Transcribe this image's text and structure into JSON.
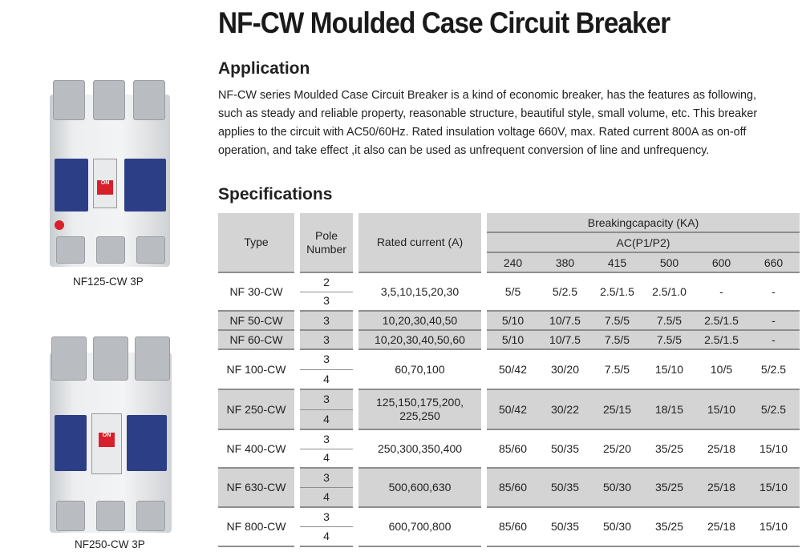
{
  "title": "NF-CW Moulded Case Circuit Breaker",
  "application": {
    "heading": "Application",
    "lines": [
      "NF-CW series Moulded Case Circuit Breaker is a kind of economic breaker, has the features as following,",
      "such as steady and reliable property, reasonable structure, beautiful style, small volume, etc. This breaker",
      "applies to the circuit with AC50/60Hz.  Rated insulation voltage 660V, max. Rated current 800A as on-off",
      "operation, and take effect ,it also can be used as unfrequent conversion of line and unfrequency."
    ]
  },
  "products": [
    {
      "caption": "NF125-CW 3P",
      "rating": "100",
      "on": "ON"
    },
    {
      "caption": "NF250-CW 3P",
      "rating": "250",
      "on": "ON"
    }
  ],
  "specifications": {
    "heading": "Specifications",
    "headers": {
      "type": "Type",
      "pole": "Pole Number",
      "rated": "Rated current (A)",
      "breaking": "Breakingcapacity (KA)",
      "ac": "AC(P1/P2)",
      "voltages": [
        "240",
        "380",
        "415",
        "500",
        "600",
        "660"
      ]
    },
    "rows": [
      {
        "type": "NF 30-CW",
        "poles": [
          "2",
          "3"
        ],
        "rated": "3,5,10,15,20,30",
        "values": [
          "5/5",
          "5/2.5",
          "2.5/1.5",
          "2.5/1.0",
          "-",
          "-"
        ],
        "shaded": false
      },
      {
        "type": "NF 50-CW",
        "poles": [
          "3"
        ],
        "rated": "10,20,30,40,50",
        "values": [
          "5/10",
          "10/7.5",
          "7.5/5",
          "7.5/5",
          "2.5/1.5",
          "-"
        ],
        "shaded": true
      },
      {
        "type": "NF 60-CW",
        "poles": [
          "3"
        ],
        "rated": "10,20,30,40,50,60",
        "values": [
          "5/10",
          "10/7.5",
          "7.5/5",
          "7.5/5",
          "2.5/1.5",
          "-"
        ],
        "shaded": true
      },
      {
        "type": "NF 100-CW",
        "poles": [
          "3",
          "4"
        ],
        "rated": "60,70,100",
        "values": [
          "50/42",
          "30/20",
          "7.5/5",
          "15/10",
          "10/5",
          "5/2.5"
        ],
        "shaded": false
      },
      {
        "type": "NF 250-CW",
        "poles": [
          "3",
          "4"
        ],
        "rated": "125,150,175,200, 225,250",
        "values": [
          "50/42",
          "30/22",
          "25/15",
          "18/15",
          "15/10",
          "5/2.5"
        ],
        "shaded": true
      },
      {
        "type": "NF 400-CW",
        "poles": [
          "3",
          "4"
        ],
        "rated": "250,300,350,400",
        "values": [
          "85/60",
          "50/35",
          "25/20",
          "35/25",
          "25/18",
          "15/10"
        ],
        "shaded": false
      },
      {
        "type": "NF 630-CW",
        "poles": [
          "3",
          "4"
        ],
        "rated": "500,600,630",
        "values": [
          "85/60",
          "50/35",
          "50/30",
          "35/25",
          "25/18",
          "15/10"
        ],
        "shaded": true
      },
      {
        "type": "NF 800-CW",
        "poles": [
          "3",
          "4"
        ],
        "rated": "600,700,800",
        "values": [
          "85/60",
          "50/35",
          "50/30",
          "35/25",
          "25/18",
          "15/10"
        ],
        "shaded": false
      }
    ]
  },
  "colors": {
    "label_blue": "#2c3f86",
    "on_red": "#d8202a",
    "row_shade": "#d4d4d4"
  }
}
